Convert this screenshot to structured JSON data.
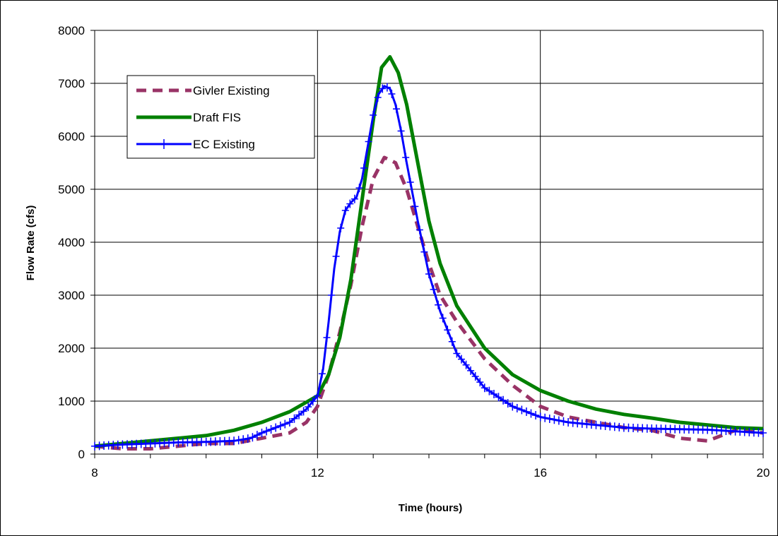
{
  "chart_data": {
    "type": "line",
    "title": "",
    "xlabel": "Time (hours)",
    "ylabel": "Flow Rate (cfs)",
    "xlim": [
      8,
      20
    ],
    "ylim": [
      0,
      8000
    ],
    "x_ticks": [
      8,
      12,
      16,
      20
    ],
    "y_ticks": [
      0,
      1000,
      2000,
      3000,
      4000,
      5000,
      6000,
      7000,
      8000
    ],
    "grid": true,
    "legend_position": "top-left",
    "series": [
      {
        "name": "Givler Existing",
        "color": "#993366",
        "style": "dashed",
        "x": [
          8,
          8.5,
          9,
          9.5,
          10,
          10.5,
          11,
          11.5,
          11.8,
          12,
          12.2,
          12.4,
          12.6,
          12.8,
          13,
          13.2,
          13.4,
          13.6,
          13.8,
          14,
          14.2,
          14.5,
          15,
          15.5,
          16,
          16.5,
          17,
          17.5,
          18,
          18.5,
          19,
          19.5,
          20
        ],
        "y": [
          150,
          100,
          100,
          150,
          200,
          200,
          300,
          400,
          600,
          900,
          1500,
          2300,
          3200,
          4300,
          5200,
          5600,
          5500,
          5000,
          4300,
          3600,
          3000,
          2500,
          1800,
          1300,
          900,
          700,
          600,
          500,
          450,
          300,
          250,
          450,
          400
        ]
      },
      {
        "name": "Draft FIS",
        "color": "#008000",
        "style": "solid",
        "x": [
          8,
          8.5,
          9,
          9.5,
          10,
          10.5,
          11,
          11.5,
          12,
          12.2,
          12.4,
          12.6,
          12.8,
          13,
          13.15,
          13.3,
          13.45,
          13.6,
          13.8,
          14,
          14.2,
          14.5,
          15,
          15.5,
          16,
          16.5,
          17,
          17.5,
          18,
          18.5,
          19,
          19.5,
          20
        ],
        "y": [
          150,
          200,
          250,
          300,
          350,
          450,
          600,
          800,
          1100,
          1500,
          2200,
          3300,
          4800,
          6300,
          7300,
          7500,
          7200,
          6600,
          5500,
          4400,
          3600,
          2800,
          2000,
          1500,
          1200,
          1000,
          850,
          750,
          680,
          600,
          550,
          500,
          480
        ]
      },
      {
        "name": "EC Existing",
        "color": "#0000FF",
        "style": "solid-marker-plus",
        "x": [
          8,
          8.5,
          9,
          9.5,
          10,
          10.5,
          10.8,
          11,
          11.5,
          11.8,
          12,
          12.1,
          12.2,
          12.3,
          12.4,
          12.5,
          12.6,
          12.7,
          12.8,
          12.9,
          13,
          13.1,
          13.2,
          13.3,
          13.4,
          13.5,
          13.6,
          13.8,
          14,
          14.2,
          14.5,
          15,
          15.5,
          16,
          16.5,
          17,
          17.5,
          18,
          18.5,
          19,
          19.5,
          20
        ],
        "y": [
          150,
          180,
          200,
          220,
          230,
          250,
          300,
          400,
          600,
          850,
          1100,
          1600,
          2500,
          3500,
          4200,
          4600,
          4750,
          4850,
          5200,
          5800,
          6400,
          6800,
          6950,
          6900,
          6600,
          6100,
          5500,
          4400,
          3400,
          2700,
          1900,
          1250,
          900,
          700,
          600,
          550,
          500,
          480,
          470,
          460,
          430,
          400
        ]
      }
    ]
  }
}
